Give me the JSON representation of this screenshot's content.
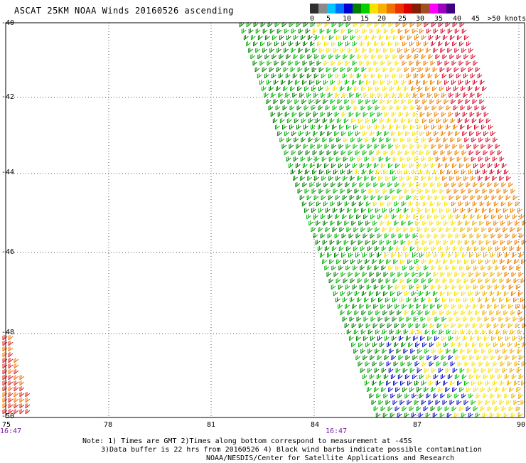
{
  "title": "ASCAT 25KM NOAA Winds 20160526 ascending",
  "legend": {
    "labels": [
      "0",
      "5",
      "10",
      "15",
      "20",
      "25",
      "30",
      "35",
      "40",
      "45",
      ">50 knots"
    ],
    "colors": [
      "#2f2f2f",
      "#8a8a8a",
      "#00c8ff",
      "#0070ff",
      "#0000d0",
      "#008000",
      "#00d000",
      "#f8e000",
      "#f8b000",
      "#f07000",
      "#f03000",
      "#d80000",
      "#802000",
      "#a05020",
      "#ff00ff",
      "#a000c0",
      "#400080"
    ]
  },
  "map": {
    "lat_labels": [
      "-40",
      "-42",
      "-44",
      "-46",
      "-48",
      "-50"
    ],
    "lon_labels": [
      "75",
      "78",
      "81",
      "84",
      "87",
      "90"
    ],
    "time_labels": [
      "16:47",
      "16:47"
    ]
  },
  "notes": {
    "line1": "Note: 1) Times are GMT 2)Times along bottom correspond to measurement at -45S",
    "line2": "3)Data buffer is 22 hrs from 20160526 4) Black wind barbs indicate possible contamination",
    "line3": "NOAA/NESDIS/Center for Satellite Applications and Research"
  }
}
